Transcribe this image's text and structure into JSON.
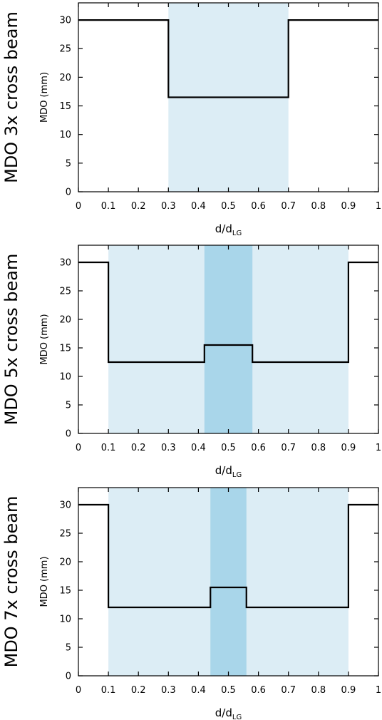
{
  "chart_data": [
    {
      "type": "line",
      "side_label": "MDO 3x cross beam",
      "ylabel": "MDO (mm)",
      "xlabel_main": "d/d",
      "xlabel_sub": "LG",
      "xlim": [
        0,
        1
      ],
      "ylim": [
        0,
        33
      ],
      "xticks": [
        0,
        0.1,
        0.2,
        0.3,
        0.4,
        0.5,
        0.6,
        0.7,
        0.8,
        0.9,
        1
      ],
      "xtick_labels": [
        "0",
        "0.1",
        "0.2",
        "0.3",
        "0.4",
        "0.5",
        "0.6",
        "0.7",
        "0.8",
        "0.9",
        "1"
      ],
      "yticks": [
        0,
        5,
        10,
        15,
        20,
        25,
        30
      ],
      "ytick_labels": [
        "0",
        "5",
        "10",
        "15",
        "20",
        "25",
        "30"
      ],
      "grid": false,
      "shaded_regions": [
        {
          "x0": 0.3,
          "x1": 0.7,
          "shade": "light",
          "color": "#dcedf5"
        }
      ],
      "series": [
        {
          "x": [
            0,
            0.3,
            0.3,
            0.7,
            0.7,
            1
          ],
          "y": [
            30,
            30,
            16.5,
            16.5,
            30,
            30
          ],
          "color": "#000000"
        }
      ]
    },
    {
      "type": "line",
      "side_label": "MDO 5x cross beam",
      "ylabel": "MDO (mm)",
      "xlabel_main": "d/d",
      "xlabel_sub": "LG",
      "xlim": [
        0,
        1
      ],
      "ylim": [
        0,
        33
      ],
      "xticks": [
        0,
        0.1,
        0.2,
        0.3,
        0.4,
        0.5,
        0.6,
        0.7,
        0.8,
        0.9,
        1
      ],
      "xtick_labels": [
        "0",
        "0.1",
        "0.2",
        "0.3",
        "0.4",
        "0.5",
        "0.6",
        "0.7",
        "0.8",
        "0.9",
        "1"
      ],
      "yticks": [
        0,
        5,
        10,
        15,
        20,
        25,
        30
      ],
      "ytick_labels": [
        "0",
        "5",
        "10",
        "15",
        "20",
        "25",
        "30"
      ],
      "grid": false,
      "shaded_regions": [
        {
          "x0": 0.1,
          "x1": 0.9,
          "shade": "light",
          "color": "#dcedf5"
        },
        {
          "x0": 0.42,
          "x1": 0.58,
          "shade": "dark",
          "color": "#a9d6ea"
        }
      ],
      "series": [
        {
          "x": [
            0,
            0.1,
            0.1,
            0.42,
            0.42,
            0.58,
            0.58,
            0.9,
            0.9,
            1
          ],
          "y": [
            30,
            30,
            12.5,
            12.5,
            15.5,
            15.5,
            12.5,
            12.5,
            30,
            30
          ],
          "color": "#000000"
        }
      ]
    },
    {
      "type": "line",
      "side_label": "MDO 7x cross beam",
      "ylabel": "MDO (mm)",
      "xlabel_main": "d/d",
      "xlabel_sub": "LG",
      "xlim": [
        0,
        1
      ],
      "ylim": [
        0,
        33
      ],
      "xticks": [
        0,
        0.1,
        0.2,
        0.3,
        0.4,
        0.5,
        0.6,
        0.7,
        0.8,
        0.9,
        1
      ],
      "xtick_labels": [
        "0",
        "0.1",
        "0.2",
        "0.3",
        "0.4",
        "0.5",
        "0.6",
        "0.7",
        "0.8",
        "0.9",
        "1"
      ],
      "yticks": [
        0,
        5,
        10,
        15,
        20,
        25,
        30
      ],
      "ytick_labels": [
        "0",
        "5",
        "10",
        "15",
        "20",
        "25",
        "30"
      ],
      "grid": false,
      "shaded_regions": [
        {
          "x0": 0.1,
          "x1": 0.9,
          "shade": "light",
          "color": "#dcedf5"
        },
        {
          "x0": 0.44,
          "x1": 0.56,
          "shade": "dark",
          "color": "#a9d6ea"
        }
      ],
      "series": [
        {
          "x": [
            0,
            0.1,
            0.1,
            0.44,
            0.44,
            0.56,
            0.56,
            0.9,
            0.9,
            1
          ],
          "y": [
            30,
            30,
            12,
            12,
            15.5,
            15.5,
            12,
            12,
            30,
            30
          ],
          "color": "#000000"
        }
      ]
    }
  ]
}
